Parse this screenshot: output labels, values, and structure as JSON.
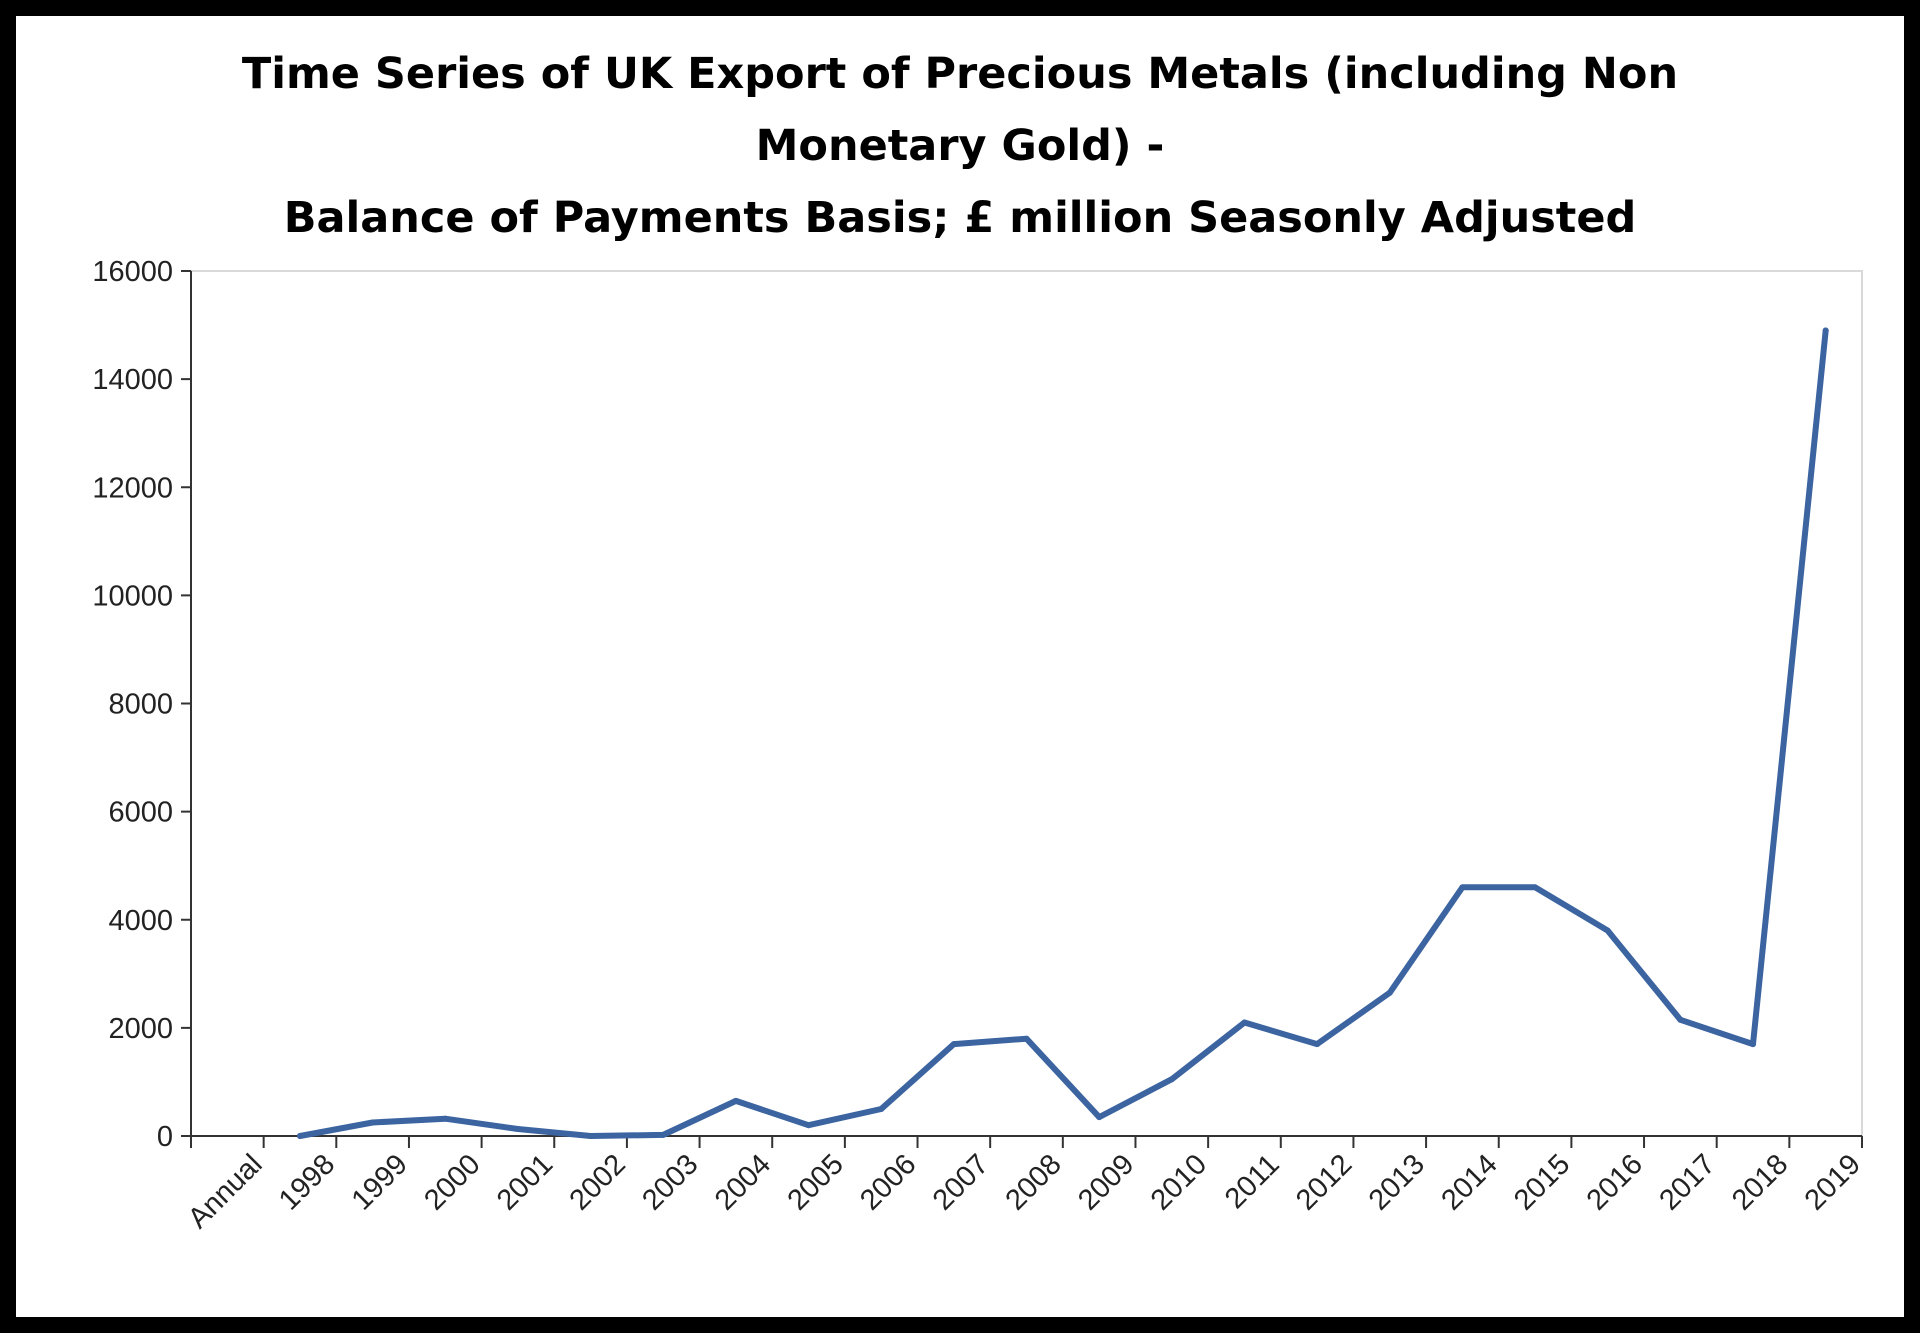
{
  "chart_data": {
    "type": "line",
    "title_lines": [
      "Time Series of UK Export of Precious Metals (including Non",
      "Monetary Gold) -",
      "Balance of Payments Basis; £ million Seasonly Adjusted"
    ],
    "xlabel": "",
    "ylabel": "",
    "categories": [
      "Annual",
      "1998",
      "1999",
      "2000",
      "2001",
      "2002",
      "2003",
      "2004",
      "2005",
      "2006",
      "2007",
      "2008",
      "2009",
      "2010",
      "2011",
      "2012",
      "2013",
      "2014",
      "2015",
      "2016",
      "2017",
      "2018",
      "2019"
    ],
    "series": [
      {
        "values": [
          null,
          0,
          250,
          320,
          130,
          0,
          20,
          650,
          200,
          500,
          1700,
          1800,
          350,
          1050,
          2100,
          1700,
          2650,
          4600,
          4600,
          3800,
          2150,
          1700,
          14900
        ]
      }
    ],
    "ylim": [
      0,
      16000
    ],
    "yticks": [
      "0",
      "2000",
      "4000",
      "6000",
      "8000",
      "10000",
      "12000",
      "14000",
      "16000"
    ],
    "grid": false,
    "legend": "none",
    "line_color": "#3b64a0"
  }
}
